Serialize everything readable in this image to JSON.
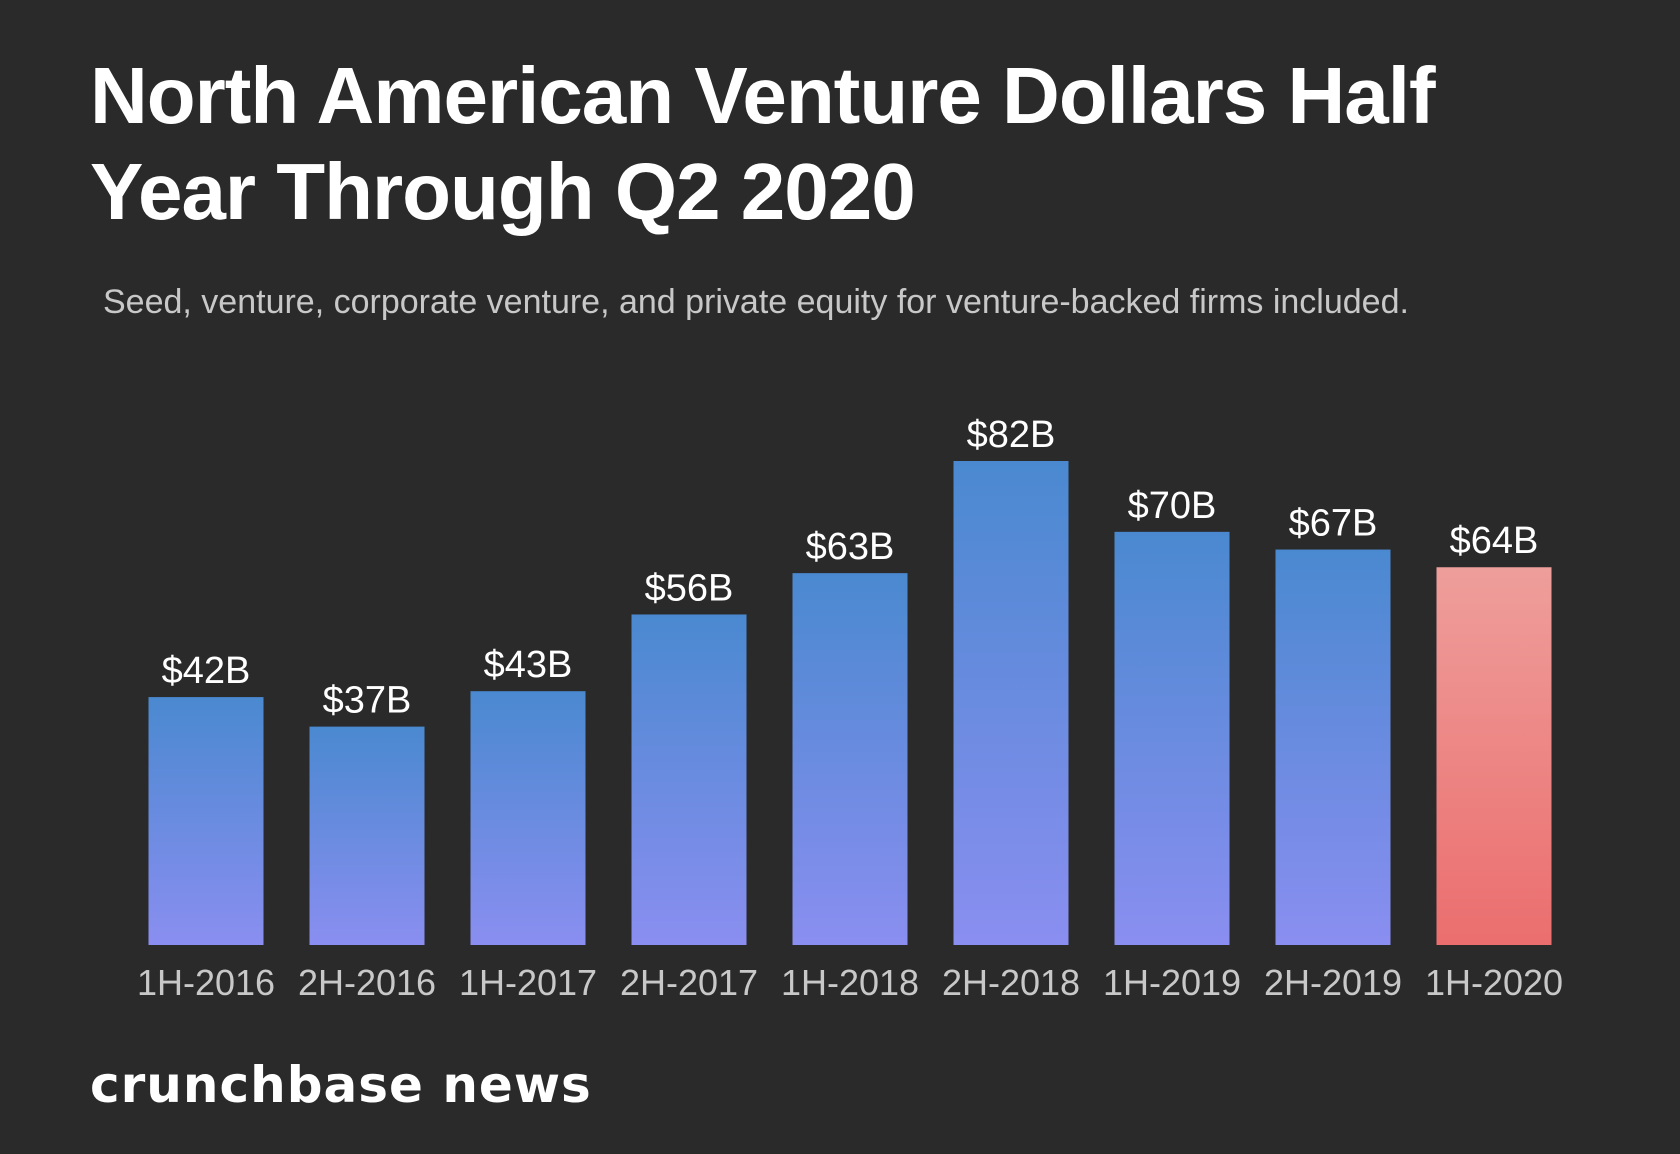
{
  "chart_data": {
    "type": "bar",
    "title": "North American Venture Dollars Half Year Through Q2 2020",
    "subtitle": "Seed, venture, corporate venture, and  private equity for venture-backed firms included.",
    "categories": [
      "1H-2016",
      "2H-2016",
      "1H-2017",
      "2H-2017",
      "1H-2018",
      "2H-2018",
      "1H-2019",
      "2H-2019",
      "1H-2020"
    ],
    "values": [
      42,
      37,
      43,
      56,
      63,
      82,
      70,
      67,
      64
    ],
    "data_labels": [
      "$42B",
      "$37B",
      "$43B",
      "$56B",
      "$63B",
      "$82B",
      "$70B",
      "$67B",
      "$64B"
    ],
    "xlabel": "",
    "ylabel": "",
    "unit": "$B",
    "ylim": [
      0,
      82
    ],
    "grid": false,
    "highlight_category": "1H-2020",
    "colors": {
      "bar_top": "#4a89d0",
      "bar_bottom": "#8a8ef0",
      "highlight_top": "#ee9e9b",
      "highlight_bottom": "#eb6e6e",
      "background": "#2a2a2a",
      "label": "#ffffff",
      "tick": "#c8c8c8"
    }
  },
  "brand": "crunchbase news"
}
